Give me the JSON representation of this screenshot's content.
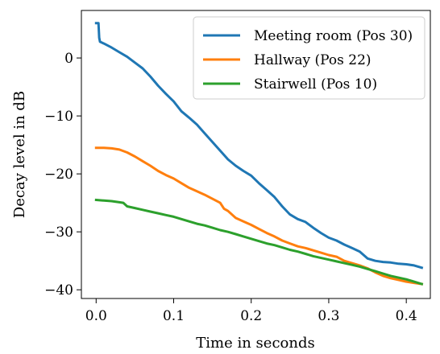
{
  "chart_data": {
    "type": "line",
    "title": "",
    "xlabel": "Time in seconds",
    "ylabel": "Decay level in dB",
    "xlim": [
      -0.019,
      0.431
    ],
    "ylim": [
      -41.5,
      8.2
    ],
    "xticks": [
      0.0,
      0.1,
      0.2,
      0.3,
      0.4
    ],
    "xtick_labels": [
      "0.0",
      "0.1",
      "0.2",
      "0.3",
      "0.4"
    ],
    "yticks": [
      0,
      -10,
      -20,
      -30,
      -40
    ],
    "ytick_labels": [
      "0",
      "−10",
      "−20",
      "−30",
      "−40"
    ],
    "grid": false,
    "legend_position": "top-right",
    "series": [
      {
        "name": "Meeting room (Pos 30)",
        "color": "#1f77b4",
        "x": [
          0.0,
          0.003,
          0.004,
          0.005,
          0.01,
          0.02,
          0.03,
          0.04,
          0.05,
          0.06,
          0.07,
          0.08,
          0.09,
          0.1,
          0.11,
          0.12,
          0.13,
          0.14,
          0.15,
          0.16,
          0.17,
          0.18,
          0.19,
          0.2,
          0.21,
          0.22,
          0.23,
          0.24,
          0.25,
          0.26,
          0.27,
          0.28,
          0.29,
          0.3,
          0.31,
          0.32,
          0.33,
          0.34,
          0.35,
          0.36,
          0.37,
          0.38,
          0.39,
          0.4,
          0.41,
          0.42
        ],
        "y": [
          6.0,
          6.0,
          3.5,
          2.8,
          2.5,
          1.8,
          1.0,
          0.2,
          -0.8,
          -1.8,
          -3.2,
          -4.8,
          -6.2,
          -7.5,
          -9.2,
          -10.3,
          -11.5,
          -13.0,
          -14.5,
          -16.0,
          -17.5,
          -18.6,
          -19.5,
          -20.3,
          -21.6,
          -22.8,
          -24.0,
          -25.6,
          -27.0,
          -27.8,
          -28.3,
          -29.3,
          -30.2,
          -31.0,
          -31.5,
          -32.2,
          -32.8,
          -33.4,
          -34.6,
          -35.0,
          -35.2,
          -35.3,
          -35.5,
          -35.6,
          -35.8,
          -36.2
        ]
      },
      {
        "name": "Hallway (Pos 22)",
        "color": "#ff7f0e",
        "x": [
          0.0,
          0.01,
          0.02,
          0.03,
          0.04,
          0.05,
          0.06,
          0.07,
          0.08,
          0.09,
          0.1,
          0.11,
          0.12,
          0.13,
          0.14,
          0.15,
          0.16,
          0.165,
          0.17,
          0.18,
          0.19,
          0.2,
          0.21,
          0.22,
          0.23,
          0.24,
          0.25,
          0.26,
          0.27,
          0.28,
          0.29,
          0.3,
          0.31,
          0.32,
          0.33,
          0.34,
          0.35,
          0.36,
          0.37,
          0.38,
          0.39,
          0.4,
          0.41,
          0.42
        ],
        "y": [
          -15.5,
          -15.5,
          -15.6,
          -15.8,
          -16.3,
          -17.0,
          -17.8,
          -18.6,
          -19.5,
          -20.2,
          -20.8,
          -21.6,
          -22.4,
          -23.0,
          -23.6,
          -24.3,
          -25.0,
          -26.0,
          -26.4,
          -27.6,
          -28.2,
          -28.8,
          -29.5,
          -30.2,
          -30.8,
          -31.5,
          -32.0,
          -32.5,
          -32.8,
          -33.2,
          -33.6,
          -34.0,
          -34.3,
          -35.0,
          -35.4,
          -35.8,
          -36.3,
          -37.0,
          -37.6,
          -38.0,
          -38.3,
          -38.6,
          -38.8,
          -39.0
        ]
      },
      {
        "name": "Stairwell (Pos 10)",
        "color": "#2ca02c",
        "x": [
          0.0,
          0.01,
          0.02,
          0.03,
          0.035,
          0.04,
          0.05,
          0.06,
          0.07,
          0.08,
          0.09,
          0.1,
          0.11,
          0.12,
          0.13,
          0.14,
          0.15,
          0.16,
          0.17,
          0.18,
          0.19,
          0.2,
          0.21,
          0.22,
          0.23,
          0.24,
          0.25,
          0.26,
          0.27,
          0.28,
          0.29,
          0.3,
          0.31,
          0.32,
          0.33,
          0.34,
          0.35,
          0.36,
          0.37,
          0.38,
          0.39,
          0.4,
          0.41,
          0.42
        ],
        "y": [
          -24.5,
          -24.6,
          -24.7,
          -24.9,
          -25.0,
          -25.6,
          -25.9,
          -26.2,
          -26.5,
          -26.8,
          -27.1,
          -27.4,
          -27.8,
          -28.2,
          -28.6,
          -28.9,
          -29.3,
          -29.7,
          -30.0,
          -30.4,
          -30.8,
          -31.2,
          -31.6,
          -32.0,
          -32.3,
          -32.7,
          -33.1,
          -33.4,
          -33.8,
          -34.2,
          -34.5,
          -34.8,
          -35.1,
          -35.4,
          -35.7,
          -36.0,
          -36.4,
          -36.8,
          -37.2,
          -37.6,
          -37.9,
          -38.2,
          -38.6,
          -39.0
        ]
      }
    ]
  }
}
